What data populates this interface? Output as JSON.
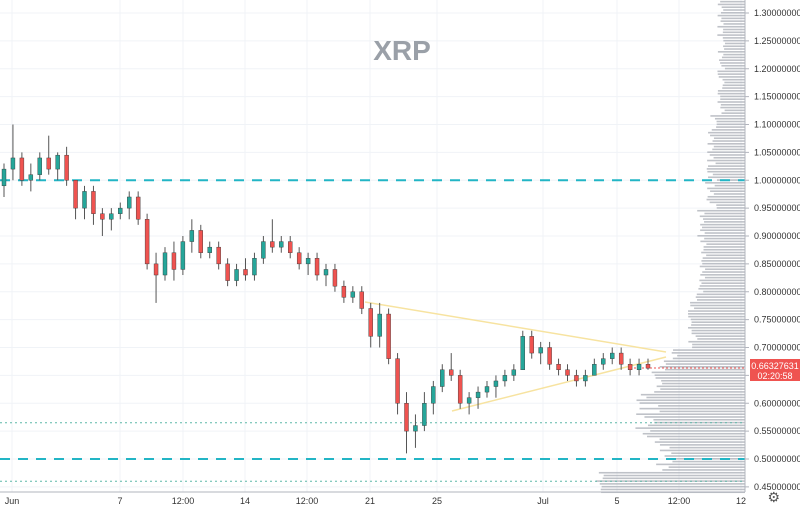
{
  "chart_data": {
    "type": "candlestick",
    "title": "XRP",
    "x_tick_labels": [
      "Jun",
      "7",
      "12:00",
      "14",
      "12:00",
      "21",
      "25",
      "Jul",
      "5",
      "12:00",
      "12"
    ],
    "y_tick_labels": [
      "1.30000000",
      "1.25000000",
      "1.20000000",
      "1.15000000",
      "1.10000000",
      "1.05000000",
      "1.00000000",
      "0.95000000",
      "0.90000000",
      "0.85000000",
      "0.80000000",
      "0.75000000",
      "0.70000000",
      "0.65000000",
      "0.60000000",
      "0.55000000",
      "0.50000000",
      "0.45000000"
    ],
    "ylim": [
      0.435,
      1.32
    ],
    "grid": true,
    "current_price": {
      "price": "0.66327631",
      "countdown": "02:20:58",
      "value": 0.6633
    },
    "horizontal_levels": [
      {
        "value": 1.0,
        "style": "dashed",
        "color": "#22b5c5"
      },
      {
        "value": 0.5,
        "style": "dashed",
        "color": "#22b5c5"
      },
      {
        "value": 0.565,
        "style": "dotted",
        "color": "#5fb8a8"
      },
      {
        "value": 0.46,
        "style": "dotted",
        "color": "#5fb8a8"
      }
    ],
    "triangle_color": "#f7e3a0",
    "colors": {
      "up": "#26a69a",
      "down": "#ef5350",
      "volume_profile": "#a9aeb6"
    },
    "candles": [
      {
        "o": 0.99,
        "h": 1.03,
        "l": 0.97,
        "c": 1.02
      },
      {
        "o": 1.02,
        "h": 1.1,
        "l": 1.0,
        "c": 1.04
      },
      {
        "o": 1.04,
        "h": 1.05,
        "l": 0.99,
        "c": 1.0
      },
      {
        "o": 1.0,
        "h": 1.03,
        "l": 0.98,
        "c": 1.01
      },
      {
        "o": 1.01,
        "h": 1.05,
        "l": 1.0,
        "c": 1.04
      },
      {
        "o": 1.04,
        "h": 1.08,
        "l": 1.01,
        "c": 1.02
      },
      {
        "o": 1.02,
        "h": 1.05,
        "l": 1.0,
        "c": 1.045
      },
      {
        "o": 1.045,
        "h": 1.06,
        "l": 0.99,
        "c": 1.0
      },
      {
        "o": 1.0,
        "h": 1.0,
        "l": 0.93,
        "c": 0.95
      },
      {
        "o": 0.95,
        "h": 0.99,
        "l": 0.93,
        "c": 0.98
      },
      {
        "o": 0.98,
        "h": 0.99,
        "l": 0.92,
        "c": 0.94
      },
      {
        "o": 0.94,
        "h": 0.95,
        "l": 0.9,
        "c": 0.93
      },
      {
        "o": 0.93,
        "h": 0.95,
        "l": 0.91,
        "c": 0.94
      },
      {
        "o": 0.94,
        "h": 0.96,
        "l": 0.93,
        "c": 0.95
      },
      {
        "o": 0.95,
        "h": 0.98,
        "l": 0.93,
        "c": 0.97
      },
      {
        "o": 0.97,
        "h": 0.98,
        "l": 0.92,
        "c": 0.93
      },
      {
        "o": 0.93,
        "h": 0.94,
        "l": 0.84,
        "c": 0.85
      },
      {
        "o": 0.85,
        "h": 0.87,
        "l": 0.78,
        "c": 0.83
      },
      {
        "o": 0.83,
        "h": 0.88,
        "l": 0.82,
        "c": 0.87
      },
      {
        "o": 0.87,
        "h": 0.89,
        "l": 0.82,
        "c": 0.84
      },
      {
        "o": 0.84,
        "h": 0.9,
        "l": 0.83,
        "c": 0.89
      },
      {
        "o": 0.89,
        "h": 0.93,
        "l": 0.87,
        "c": 0.91
      },
      {
        "o": 0.91,
        "h": 0.92,
        "l": 0.86,
        "c": 0.87
      },
      {
        "o": 0.87,
        "h": 0.89,
        "l": 0.86,
        "c": 0.88
      },
      {
        "o": 0.88,
        "h": 0.89,
        "l": 0.84,
        "c": 0.85
      },
      {
        "o": 0.85,
        "h": 0.86,
        "l": 0.81,
        "c": 0.82
      },
      {
        "o": 0.82,
        "h": 0.85,
        "l": 0.81,
        "c": 0.84
      },
      {
        "o": 0.84,
        "h": 0.86,
        "l": 0.82,
        "c": 0.83
      },
      {
        "o": 0.83,
        "h": 0.87,
        "l": 0.82,
        "c": 0.86
      },
      {
        "o": 0.86,
        "h": 0.9,
        "l": 0.85,
        "c": 0.89
      },
      {
        "o": 0.89,
        "h": 0.93,
        "l": 0.87,
        "c": 0.88
      },
      {
        "o": 0.88,
        "h": 0.9,
        "l": 0.87,
        "c": 0.89
      },
      {
        "o": 0.89,
        "h": 0.9,
        "l": 0.86,
        "c": 0.87
      },
      {
        "o": 0.87,
        "h": 0.88,
        "l": 0.84,
        "c": 0.85
      },
      {
        "o": 0.85,
        "h": 0.87,
        "l": 0.83,
        "c": 0.86
      },
      {
        "o": 0.86,
        "h": 0.87,
        "l": 0.82,
        "c": 0.83
      },
      {
        "o": 0.83,
        "h": 0.85,
        "l": 0.81,
        "c": 0.84
      },
      {
        "o": 0.84,
        "h": 0.85,
        "l": 0.8,
        "c": 0.81
      },
      {
        "o": 0.81,
        "h": 0.82,
        "l": 0.78,
        "c": 0.79
      },
      {
        "o": 0.79,
        "h": 0.81,
        "l": 0.78,
        "c": 0.8
      },
      {
        "o": 0.8,
        "h": 0.81,
        "l": 0.76,
        "c": 0.77
      },
      {
        "o": 0.77,
        "h": 0.78,
        "l": 0.7,
        "c": 0.72
      },
      {
        "o": 0.72,
        "h": 0.78,
        "l": 0.7,
        "c": 0.76
      },
      {
        "o": 0.76,
        "h": 0.77,
        "l": 0.67,
        "c": 0.68
      },
      {
        "o": 0.68,
        "h": 0.69,
        "l": 0.58,
        "c": 0.6
      },
      {
        "o": 0.6,
        "h": 0.62,
        "l": 0.51,
        "c": 0.55
      },
      {
        "o": 0.55,
        "h": 0.58,
        "l": 0.52,
        "c": 0.56
      },
      {
        "o": 0.56,
        "h": 0.62,
        "l": 0.55,
        "c": 0.6
      },
      {
        "o": 0.6,
        "h": 0.64,
        "l": 0.58,
        "c": 0.63
      },
      {
        "o": 0.63,
        "h": 0.67,
        "l": 0.62,
        "c": 0.66
      },
      {
        "o": 0.66,
        "h": 0.69,
        "l": 0.64,
        "c": 0.65
      },
      {
        "o": 0.65,
        "h": 0.66,
        "l": 0.59,
        "c": 0.6
      },
      {
        "o": 0.6,
        "h": 0.62,
        "l": 0.58,
        "c": 0.61
      },
      {
        "o": 0.61,
        "h": 0.63,
        "l": 0.59,
        "c": 0.62
      },
      {
        "o": 0.62,
        "h": 0.64,
        "l": 0.61,
        "c": 0.63
      },
      {
        "o": 0.63,
        "h": 0.65,
        "l": 0.61,
        "c": 0.64
      },
      {
        "o": 0.64,
        "h": 0.66,
        "l": 0.63,
        "c": 0.65
      },
      {
        "o": 0.65,
        "h": 0.67,
        "l": 0.64,
        "c": 0.66
      },
      {
        "o": 0.66,
        "h": 0.73,
        "l": 0.66,
        "c": 0.72
      },
      {
        "o": 0.72,
        "h": 0.73,
        "l": 0.68,
        "c": 0.69
      },
      {
        "o": 0.69,
        "h": 0.71,
        "l": 0.67,
        "c": 0.7
      },
      {
        "o": 0.7,
        "h": 0.71,
        "l": 0.66,
        "c": 0.67
      },
      {
        "o": 0.67,
        "h": 0.68,
        "l": 0.65,
        "c": 0.66
      },
      {
        "o": 0.66,
        "h": 0.67,
        "l": 0.64,
        "c": 0.65
      },
      {
        "o": 0.65,
        "h": 0.66,
        "l": 0.63,
        "c": 0.64
      },
      {
        "o": 0.64,
        "h": 0.66,
        "l": 0.63,
        "c": 0.65
      },
      {
        "o": 0.65,
        "h": 0.68,
        "l": 0.65,
        "c": 0.67
      },
      {
        "o": 0.67,
        "h": 0.69,
        "l": 0.66,
        "c": 0.68
      },
      {
        "o": 0.68,
        "h": 0.7,
        "l": 0.67,
        "c": 0.69
      },
      {
        "o": 0.69,
        "h": 0.7,
        "l": 0.66,
        "c": 0.67
      },
      {
        "o": 0.67,
        "h": 0.68,
        "l": 0.65,
        "c": 0.66
      },
      {
        "o": 0.66,
        "h": 0.68,
        "l": 0.65,
        "c": 0.67
      },
      {
        "o": 0.67,
        "h": 0.68,
        "l": 0.66,
        "c": 0.663
      }
    ]
  }
}
